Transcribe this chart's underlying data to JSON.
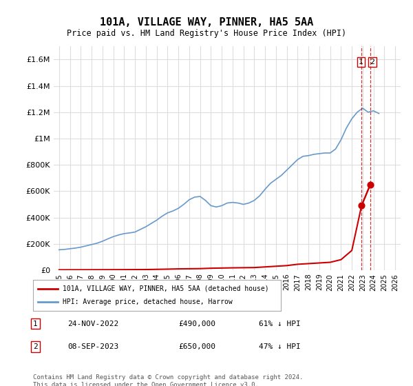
{
  "title": "101A, VILLAGE WAY, PINNER, HA5 5AA",
  "subtitle": "Price paid vs. HM Land Registry's House Price Index (HPI)",
  "ylabel_ticks": [
    "£0",
    "£200K",
    "£400K",
    "£600K",
    "£800K",
    "£1M",
    "£1.2M",
    "£1.4M",
    "£1.6M"
  ],
  "ytick_vals": [
    0,
    200000,
    400000,
    600000,
    800000,
    1000000,
    1200000,
    1400000,
    1600000
  ],
  "ylim": [
    0,
    1700000
  ],
  "xlim_start": 1994.5,
  "xlim_end": 2026.5,
  "xticks": [
    1995,
    1996,
    1997,
    1998,
    1999,
    2000,
    2001,
    2002,
    2003,
    2004,
    2005,
    2006,
    2007,
    2008,
    2009,
    2010,
    2011,
    2012,
    2013,
    2014,
    2015,
    2016,
    2017,
    2018,
    2019,
    2020,
    2021,
    2022,
    2023,
    2024,
    2025,
    2026
  ],
  "hpi_color": "#6699cc",
  "sale_color": "#cc0000",
  "dashed_color": "#cc0000",
  "grid_color": "#dddddd",
  "background_color": "#ffffff",
  "legend_border_color": "#aaaaaa",
  "transaction_label1": "1",
  "transaction_label2": "2",
  "transaction1_date": "24-NOV-2022",
  "transaction1_price": "£490,000",
  "transaction1_hpi": "61% ↓ HPI",
  "transaction2_date": "08-SEP-2023",
  "transaction2_price": "£650,000",
  "transaction2_hpi": "47% ↓ HPI",
  "legend_line1": "101A, VILLAGE WAY, PINNER, HA5 5AA (detached house)",
  "legend_line2": "HPI: Average price, detached house, Harrow",
  "footnote": "Contains HM Land Registry data © Crown copyright and database right 2024.\nThis data is licensed under the Open Government Licence v3.0.",
  "hpi_years": [
    1995,
    1995.5,
    1996,
    1996.5,
    1997,
    1997.5,
    1998,
    1998.5,
    1999,
    1999.5,
    2000,
    2000.5,
    2001,
    2001.5,
    2002,
    2002.5,
    2003,
    2003.5,
    2004,
    2004.5,
    2005,
    2005.5,
    2006,
    2006.5,
    2007,
    2007.5,
    2008,
    2008.5,
    2009,
    2009.5,
    2010,
    2010.5,
    2011,
    2011.5,
    2012,
    2012.5,
    2013,
    2013.5,
    2014,
    2014.5,
    2015,
    2015.5,
    2016,
    2016.5,
    2017,
    2017.5,
    2018,
    2018.5,
    2019,
    2019.5,
    2020,
    2020.5,
    2021,
    2021.5,
    2022,
    2022.5,
    2023,
    2023.5,
    2024,
    2024.5
  ],
  "hpi_values": [
    155000,
    158000,
    163000,
    168000,
    175000,
    185000,
    195000,
    205000,
    220000,
    238000,
    255000,
    268000,
    278000,
    283000,
    290000,
    310000,
    330000,
    355000,
    380000,
    410000,
    435000,
    450000,
    470000,
    500000,
    535000,
    555000,
    560000,
    530000,
    490000,
    480000,
    490000,
    510000,
    515000,
    510000,
    500000,
    510000,
    530000,
    565000,
    615000,
    660000,
    690000,
    720000,
    760000,
    800000,
    840000,
    865000,
    870000,
    880000,
    885000,
    890000,
    890000,
    920000,
    990000,
    1080000,
    1150000,
    1200000,
    1230000,
    1200000,
    1210000,
    1190000
  ],
  "sale_years": [
    2022.9,
    2023.7
  ],
  "sale_values": [
    490000,
    650000
  ],
  "vline1_x": 2022.9,
  "vline2_x": 2023.7
}
